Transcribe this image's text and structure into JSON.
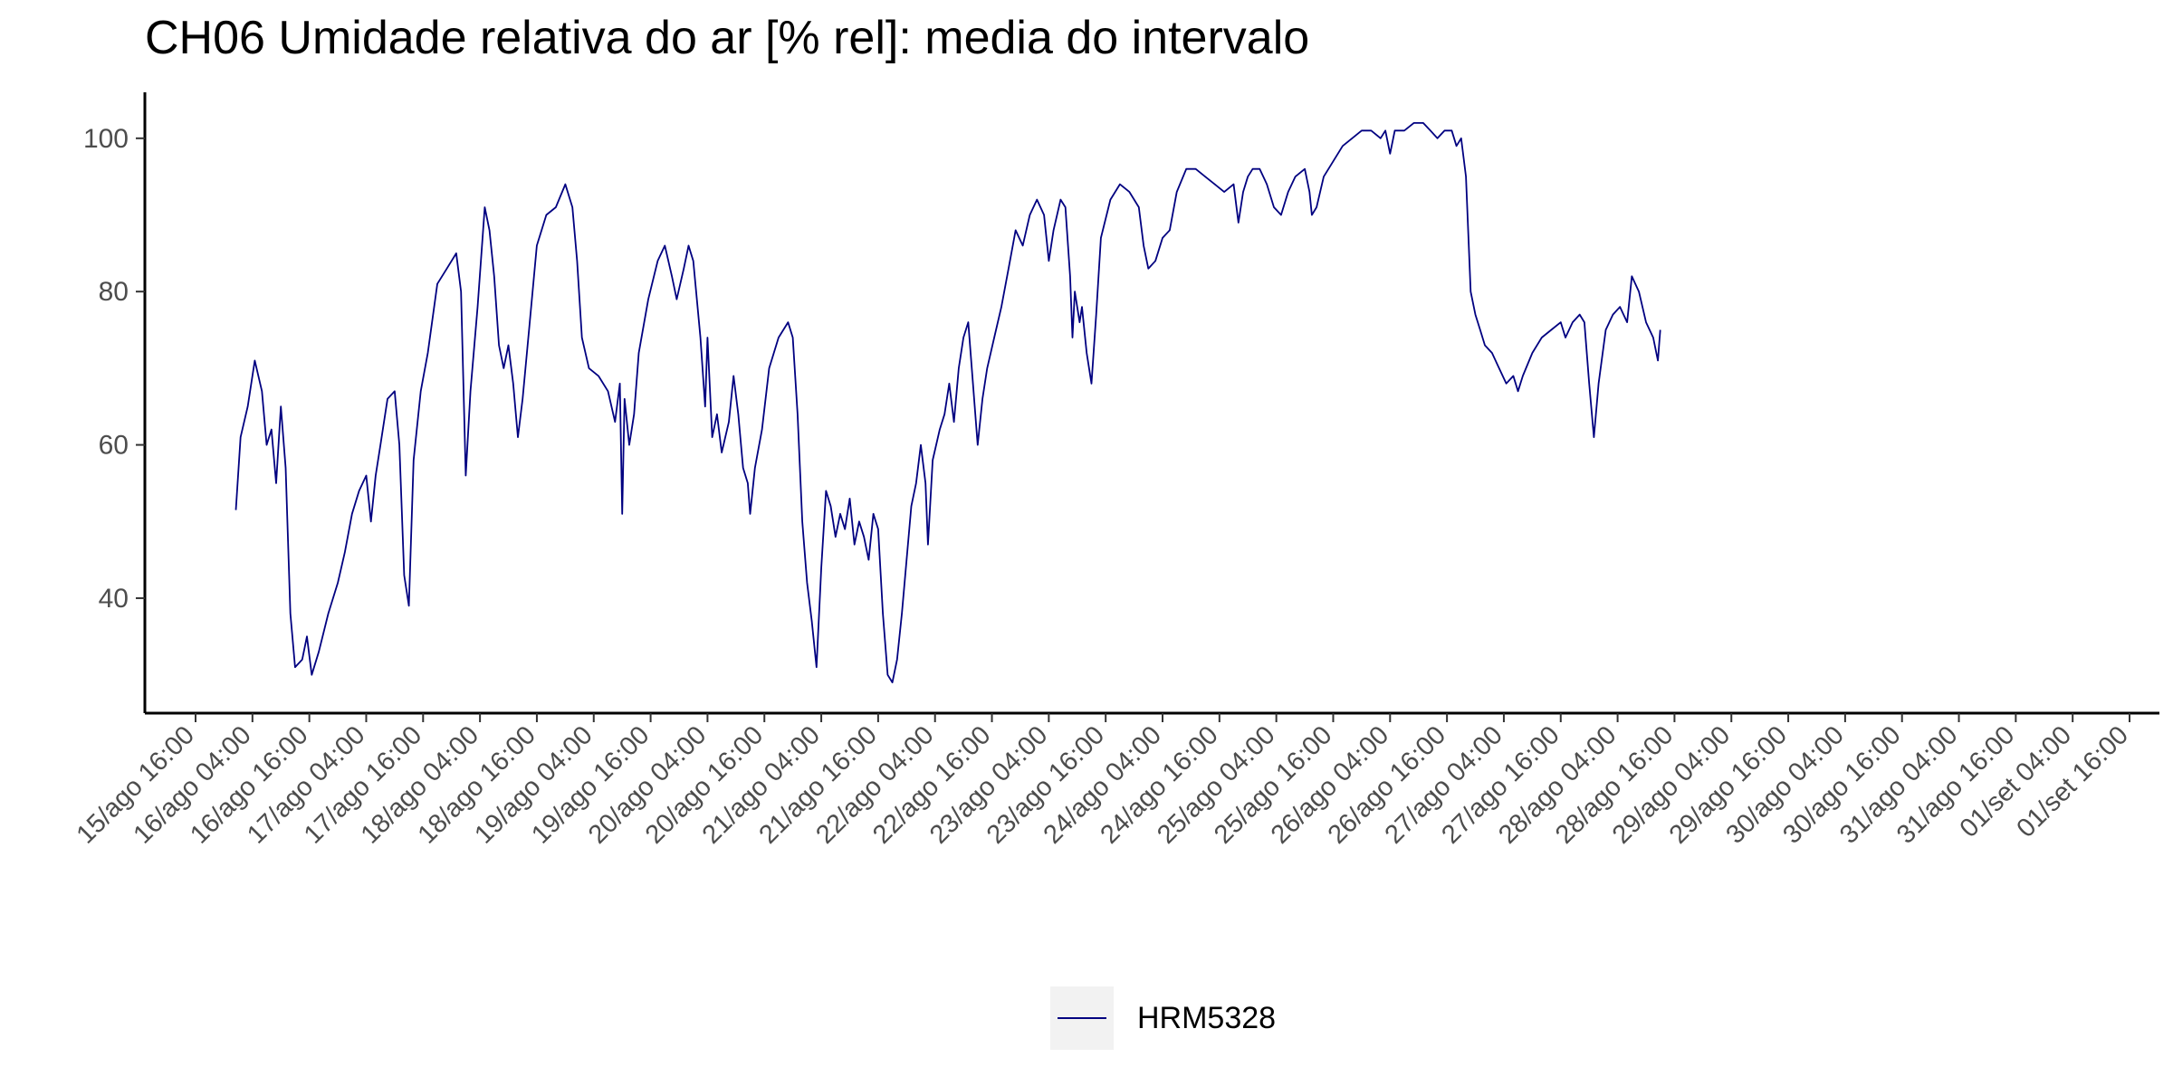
{
  "chart_data": {
    "type": "line",
    "title": "CH06 Umidade relativa do ar [% rel]: media do intervalo",
    "xlabel": "",
    "ylabel": "",
    "ylim": [
      25,
      106
    ],
    "y_ticks": [
      40,
      60,
      80,
      100
    ],
    "grid": false,
    "legend_position": "bottom",
    "x_tick_labels": [
      "15/ago 16:00",
      "16/ago 04:00",
      "16/ago 16:00",
      "17/ago 04:00",
      "17/ago 16:00",
      "18/ago 04:00",
      "18/ago 16:00",
      "19/ago 04:00",
      "19/ago 16:00",
      "20/ago 04:00",
      "20/ago 16:00",
      "21/ago 04:00",
      "21/ago 16:00",
      "22/ago 04:00",
      "22/ago 16:00",
      "23/ago 04:00",
      "23/ago 16:00",
      "24/ago 04:00",
      "24/ago 16:00",
      "25/ago 04:00",
      "25/ago 16:00",
      "26/ago 04:00",
      "26/ago 16:00",
      "27/ago 04:00",
      "27/ago 16:00",
      "28/ago 04:00",
      "28/ago 16:00",
      "29/ago 04:00",
      "29/ago 16:00",
      "30/ago 04:00",
      "30/ago 16:00",
      "31/ago 04:00",
      "31/ago 16:00",
      "01/set 04:00",
      "01/set 16:00"
    ],
    "series": [
      {
        "name": "HRM5328",
        "color": "#000080",
        "points": [
          [
            "16/ago 00:30",
            51.5
          ],
          [
            "16/ago 01:30",
            61
          ],
          [
            "16/ago 03:00",
            65
          ],
          [
            "16/ago 04:30",
            71
          ],
          [
            "16/ago 06:00",
            67
          ],
          [
            "16/ago 07:00",
            60
          ],
          [
            "16/ago 08:00",
            62
          ],
          [
            "16/ago 09:00",
            55
          ],
          [
            "16/ago 10:00",
            65
          ],
          [
            "16/ago 11:00",
            57
          ],
          [
            "16/ago 12:00",
            38
          ],
          [
            "16/ago 13:00",
            31
          ],
          [
            "16/ago 14:30",
            32
          ],
          [
            "16/ago 15:30",
            35
          ],
          [
            "16/ago 16:30",
            30
          ],
          [
            "16/ago 18:00",
            33
          ],
          [
            "16/ago 20:00",
            38
          ],
          [
            "16/ago 22:00",
            42
          ],
          [
            "16/ago 23:30",
            46
          ],
          [
            "17/ago 01:00",
            51
          ],
          [
            "17/ago 02:30",
            54
          ],
          [
            "17/ago 04:00",
            56
          ],
          [
            "17/ago 05:00",
            50
          ],
          [
            "17/ago 06:00",
            56
          ],
          [
            "17/ago 07:00",
            60
          ],
          [
            "17/ago 08:30",
            66
          ],
          [
            "17/ago 10:00",
            67
          ],
          [
            "17/ago 11:00",
            60
          ],
          [
            "17/ago 12:00",
            43
          ],
          [
            "17/ago 13:00",
            39
          ],
          [
            "17/ago 14:00",
            58
          ],
          [
            "17/ago 15:30",
            67
          ],
          [
            "17/ago 17:00",
            72
          ],
          [
            "17/ago 19:00",
            81
          ],
          [
            "17/ago 21:00",
            83
          ],
          [
            "17/ago 23:00",
            85
          ],
          [
            "18/ago 00:00",
            80
          ],
          [
            "18/ago 01:00",
            56
          ],
          [
            "18/ago 02:00",
            67
          ],
          [
            "18/ago 03:30",
            78
          ],
          [
            "18/ago 05:00",
            91
          ],
          [
            "18/ago 06:00",
            88
          ],
          [
            "18/ago 07:00",
            82
          ],
          [
            "18/ago 08:00",
            73
          ],
          [
            "18/ago 09:00",
            70
          ],
          [
            "18/ago 10:00",
            73
          ],
          [
            "18/ago 11:00",
            68
          ],
          [
            "18/ago 12:00",
            61
          ],
          [
            "18/ago 13:00",
            66
          ],
          [
            "18/ago 14:30",
            76
          ],
          [
            "18/ago 16:00",
            86
          ],
          [
            "18/ago 18:00",
            90
          ],
          [
            "18/ago 20:00",
            91
          ],
          [
            "18/ago 22:00",
            94
          ],
          [
            "18/ago 23:30",
            91
          ],
          [
            "19/ago 00:30",
            84
          ],
          [
            "19/ago 01:30",
            74
          ],
          [
            "19/ago 03:00",
            70
          ],
          [
            "19/ago 05:00",
            69
          ],
          [
            "19/ago 07:00",
            67
          ],
          [
            "19/ago 08:30",
            63
          ],
          [
            "19/ago 09:30",
            68
          ],
          [
            "19/ago 10:00",
            51
          ],
          [
            "19/ago 10:30",
            66
          ],
          [
            "19/ago 11:30",
            60
          ],
          [
            "19/ago 12:30",
            64
          ],
          [
            "19/ago 13:30",
            72
          ],
          [
            "19/ago 15:30",
            79
          ],
          [
            "19/ago 17:30",
            84
          ],
          [
            "19/ago 19:00",
            86
          ],
          [
            "19/ago 20:30",
            82
          ],
          [
            "19/ago 21:30",
            79
          ],
          [
            "19/ago 23:00",
            83
          ],
          [
            "20/ago 00:00",
            86
          ],
          [
            "20/ago 01:00",
            84
          ],
          [
            "20/ago 02:30",
            74
          ],
          [
            "20/ago 03:30",
            65
          ],
          [
            "20/ago 04:00",
            74
          ],
          [
            "20/ago 05:00",
            61
          ],
          [
            "20/ago 06:00",
            64
          ],
          [
            "20/ago 07:00",
            59
          ],
          [
            "20/ago 08:30",
            63
          ],
          [
            "20/ago 09:30",
            69
          ],
          [
            "20/ago 10:30",
            64
          ],
          [
            "20/ago 11:30",
            57
          ],
          [
            "20/ago 12:30",
            55
          ],
          [
            "20/ago 13:00",
            51
          ],
          [
            "20/ago 14:00",
            57
          ],
          [
            "20/ago 15:30",
            62
          ],
          [
            "20/ago 17:00",
            70
          ],
          [
            "20/ago 19:00",
            74
          ],
          [
            "20/ago 21:00",
            76
          ],
          [
            "20/ago 22:00",
            74
          ],
          [
            "20/ago 23:00",
            64
          ],
          [
            "21/ago 00:00",
            50
          ],
          [
            "21/ago 01:00",
            42
          ],
          [
            "21/ago 02:00",
            37
          ],
          [
            "21/ago 03:00",
            31
          ],
          [
            "21/ago 04:00",
            44
          ],
          [
            "21/ago 05:00",
            54
          ],
          [
            "21/ago 06:00",
            52
          ],
          [
            "21/ago 07:00",
            48
          ],
          [
            "21/ago 08:00",
            51
          ],
          [
            "21/ago 09:00",
            49
          ],
          [
            "21/ago 10:00",
            53
          ],
          [
            "21/ago 11:00",
            47
          ],
          [
            "21/ago 12:00",
            50
          ],
          [
            "21/ago 13:00",
            48
          ],
          [
            "21/ago 14:00",
            45
          ],
          [
            "21/ago 15:00",
            51
          ],
          [
            "21/ago 16:00",
            49
          ],
          [
            "21/ago 17:00",
            38
          ],
          [
            "21/ago 18:00",
            30
          ],
          [
            "21/ago 19:00",
            29
          ],
          [
            "21/ago 20:00",
            32
          ],
          [
            "21/ago 21:00",
            38
          ],
          [
            "21/ago 22:00",
            45
          ],
          [
            "21/ago 23:00",
            52
          ],
          [
            "22/ago 00:00",
            55
          ],
          [
            "22/ago 01:00",
            60
          ],
          [
            "22/ago 02:00",
            55
          ],
          [
            "22/ago 02:30",
            47
          ],
          [
            "22/ago 03:30",
            58
          ],
          [
            "22/ago 05:00",
            62
          ],
          [
            "22/ago 06:00",
            64
          ],
          [
            "22/ago 07:00",
            68
          ],
          [
            "22/ago 08:00",
            63
          ],
          [
            "22/ago 09:00",
            70
          ],
          [
            "22/ago 10:00",
            74
          ],
          [
            "22/ago 11:00",
            76
          ],
          [
            "22/ago 12:00",
            68
          ],
          [
            "22/ago 13:00",
            60
          ],
          [
            "22/ago 14:00",
            66
          ],
          [
            "22/ago 15:00",
            70
          ],
          [
            "22/ago 16:30",
            74
          ],
          [
            "22/ago 18:00",
            78
          ],
          [
            "22/ago 19:30",
            83
          ],
          [
            "22/ago 21:00",
            88
          ],
          [
            "22/ago 22:30",
            86
          ],
          [
            "23/ago 00:00",
            90
          ],
          [
            "23/ago 01:30",
            92
          ],
          [
            "23/ago 03:00",
            90
          ],
          [
            "23/ago 04:00",
            84
          ],
          [
            "23/ago 05:00",
            88
          ],
          [
            "23/ago 06:30",
            92
          ],
          [
            "23/ago 07:30",
            91
          ],
          [
            "23/ago 08:30",
            82
          ],
          [
            "23/ago 09:00",
            74
          ],
          [
            "23/ago 09:30",
            80
          ],
          [
            "23/ago 10:30",
            76
          ],
          [
            "23/ago 11:00",
            78
          ],
          [
            "23/ago 12:00",
            72
          ],
          [
            "23/ago 13:00",
            68
          ],
          [
            "23/ago 14:00",
            77
          ],
          [
            "23/ago 15:00",
            87
          ],
          [
            "23/ago 17:00",
            92
          ],
          [
            "23/ago 19:00",
            94
          ],
          [
            "23/ago 21:00",
            93
          ],
          [
            "23/ago 23:00",
            91
          ],
          [
            "24/ago 00:00",
            86
          ],
          [
            "24/ago 01:00",
            83
          ],
          [
            "24/ago 02:30",
            84
          ],
          [
            "24/ago 04:00",
            87
          ],
          [
            "24/ago 05:30",
            88
          ],
          [
            "24/ago 07:00",
            93
          ],
          [
            "24/ago 09:00",
            96
          ],
          [
            "24/ago 11:00",
            96
          ],
          [
            "24/ago 13:00",
            95
          ],
          [
            "24/ago 15:00",
            94
          ],
          [
            "24/ago 17:00",
            93
          ],
          [
            "24/ago 19:00",
            94
          ],
          [
            "24/ago 20:00",
            89
          ],
          [
            "24/ago 21:00",
            93
          ],
          [
            "24/ago 22:00",
            95
          ],
          [
            "24/ago 23:00",
            96
          ],
          [
            "25/ago 00:30",
            96
          ],
          [
            "25/ago 02:00",
            94
          ],
          [
            "25/ago 03:30",
            91
          ],
          [
            "25/ago 05:00",
            90
          ],
          [
            "25/ago 06:30",
            93
          ],
          [
            "25/ago 08:00",
            95
          ],
          [
            "25/ago 10:00",
            96
          ],
          [
            "25/ago 11:00",
            93
          ],
          [
            "25/ago 11:30",
            90
          ],
          [
            "25/ago 12:30",
            91
          ],
          [
            "25/ago 14:00",
            95
          ],
          [
            "25/ago 16:00",
            97
          ],
          [
            "25/ago 18:00",
            99
          ],
          [
            "25/ago 20:00",
            100
          ],
          [
            "25/ago 22:00",
            101
          ],
          [
            "26/ago 00:00",
            101
          ],
          [
            "26/ago 02:00",
            100
          ],
          [
            "26/ago 03:00",
            101
          ],
          [
            "26/ago 04:00",
            98
          ],
          [
            "26/ago 05:00",
            101
          ],
          [
            "26/ago 07:00",
            101
          ],
          [
            "26/ago 09:00",
            102
          ],
          [
            "26/ago 11:00",
            102
          ],
          [
            "26/ago 12:30",
            101
          ],
          [
            "26/ago 14:00",
            100
          ],
          [
            "26/ago 15:30",
            101
          ],
          [
            "26/ago 17:00",
            101
          ],
          [
            "26/ago 18:00",
            99
          ],
          [
            "26/ago 19:00",
            100
          ],
          [
            "26/ago 20:00",
            95
          ],
          [
            "26/ago 21:00",
            80
          ],
          [
            "26/ago 22:00",
            77
          ],
          [
            "26/ago 23:00",
            75
          ],
          [
            "27/ago 00:00",
            73
          ],
          [
            "27/ago 01:30",
            72
          ],
          [
            "27/ago 03:00",
            70
          ],
          [
            "27/ago 04:30",
            68
          ],
          [
            "27/ago 06:00",
            69
          ],
          [
            "27/ago 07:00",
            67
          ],
          [
            "27/ago 08:00",
            69
          ],
          [
            "27/ago 10:00",
            72
          ],
          [
            "27/ago 12:00",
            74
          ],
          [
            "27/ago 14:00",
            75
          ],
          [
            "27/ago 16:00",
            76
          ],
          [
            "27/ago 17:00",
            74
          ],
          [
            "27/ago 18:30",
            76
          ],
          [
            "27/ago 20:00",
            77
          ],
          [
            "27/ago 21:00",
            76
          ],
          [
            "27/ago 22:00",
            68
          ],
          [
            "27/ago 23:00",
            61
          ],
          [
            "28/ago 00:00",
            68
          ],
          [
            "28/ago 01:30",
            75
          ],
          [
            "28/ago 03:00",
            77
          ],
          [
            "28/ago 04:30",
            78
          ],
          [
            "28/ago 06:00",
            76
          ],
          [
            "28/ago 07:00",
            82
          ],
          [
            "28/ago 08:30",
            80
          ],
          [
            "28/ago 10:00",
            76
          ],
          [
            "28/ago 11:30",
            74
          ],
          [
            "28/ago 12:30",
            71
          ],
          [
            "28/ago 13:00",
            75
          ]
        ]
      }
    ]
  },
  "legend": {
    "items": [
      {
        "label": "HRM5328",
        "color": "#000080"
      }
    ]
  }
}
